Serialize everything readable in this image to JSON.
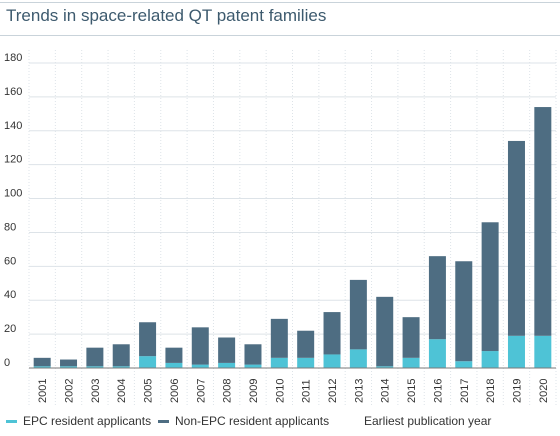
{
  "title": "Trends in space-related QT patent families",
  "colors": {
    "epc": "#4ec3d6",
    "non_epc": "#4e6d82",
    "grid": "#dde3e8",
    "axis": "#7a7a7a",
    "title": "#3d5a6e"
  },
  "chart_data": {
    "type": "bar",
    "stacked": true,
    "title": "Trends in space-related QT patent families",
    "xlabel": "Earliest publication year",
    "ylabel": "",
    "ylim": [
      0,
      190
    ],
    "yticks": [
      0,
      20,
      40,
      60,
      80,
      100,
      120,
      140,
      160,
      180
    ],
    "grid": true,
    "legend_position": "bottom",
    "categories": [
      "2001",
      "2002",
      "2003",
      "2004",
      "2005",
      "2006",
      "2007",
      "2008",
      "2009",
      "2010",
      "2011",
      "2012",
      "2013",
      "2014",
      "2015",
      "2016",
      "2017",
      "2018",
      "2019",
      "2020"
    ],
    "series": [
      {
        "name": "EPC resident applicants",
        "color": "#4ec3d6",
        "values": [
          1,
          1,
          1,
          1,
          7,
          3,
          2,
          3,
          2,
          6,
          6,
          8,
          11,
          1,
          6,
          17,
          4,
          10,
          19,
          19
        ]
      },
      {
        "name": "Non-EPC resident applicants",
        "color": "#4e6d82",
        "values": [
          5,
          4,
          11,
          13,
          20,
          9,
          22,
          15,
          12,
          23,
          16,
          25,
          41,
          41,
          24,
          49,
          59,
          76,
          115,
          135
        ]
      }
    ]
  },
  "legend": {
    "epc_label": "EPC resident applicants",
    "non_epc_label": "Non-EPC resident applicants",
    "axis_label": "Earliest publication year"
  }
}
